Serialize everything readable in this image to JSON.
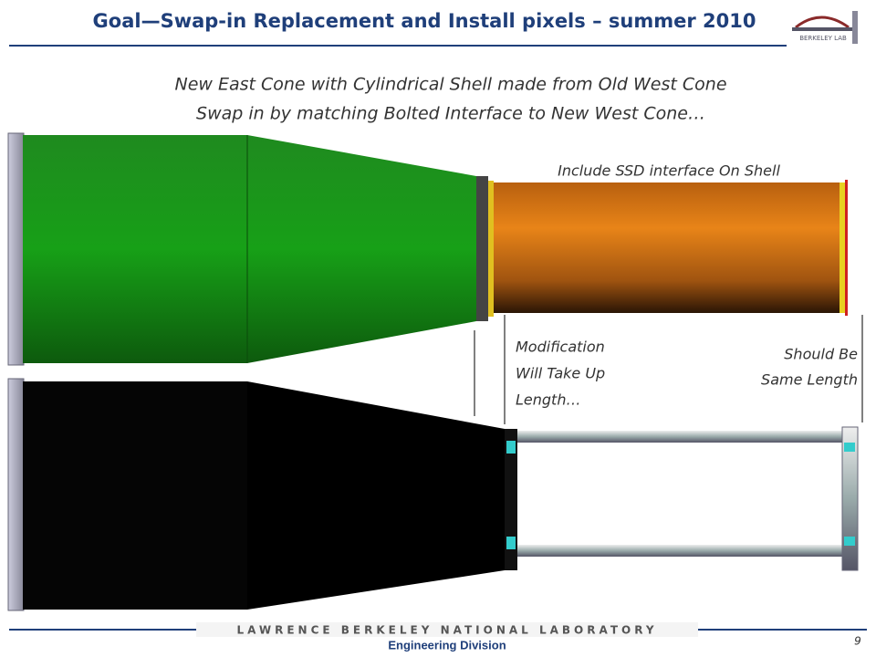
{
  "header": {
    "title": "Goal—Swap-in Replacement and Install pixels – summer 2010",
    "logo": "BERKELEY LAB"
  },
  "subtitle": [
    "New East Cone with Cylindrical Shell made from Old West Cone",
    "Swap in by matching Bolted Interface to New West Cone…"
  ],
  "annotations": {
    "ssd": "Include SSD interface On Shell",
    "modification": [
      "Modification",
      "Will Take Up",
      "Length…"
    ],
    "same_length": [
      "Should Be",
      "Same Length"
    ]
  },
  "footer": {
    "lab": "LAWRENCE BERKELEY NATIONAL LABORATORY",
    "division": "Engineering Division",
    "page": "9"
  }
}
